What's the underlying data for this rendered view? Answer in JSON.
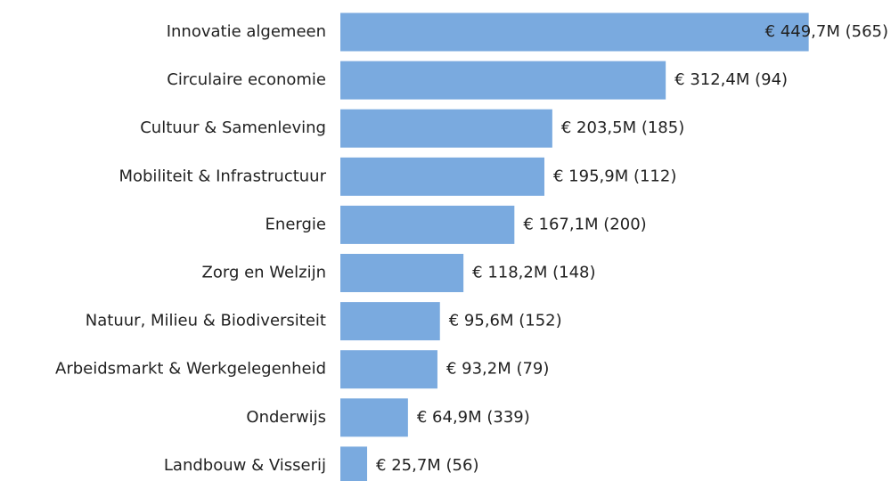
{
  "chart_data": {
    "type": "bar",
    "orientation": "horizontal",
    "categories": [
      "Innovatie algemeen",
      "Circulaire economie",
      "Cultuur & Samenleving",
      "Mobiliteit & Infrastructuur",
      "Energie",
      "Zorg en Welzijn",
      "Natuur, Milieu & Biodiversiteit",
      "Arbeidsmarkt & Werkgelegenheid",
      "Onderwijs",
      "Landbouw & Visserij"
    ],
    "values": [
      449.7,
      312.4,
      203.5,
      195.9,
      167.1,
      118.2,
      95.6,
      93.2,
      64.9,
      25.7
    ],
    "value_labels": [
      "€ 449,7M (565)",
      "€ 312,4M (94)",
      "€ 203,5M (185)",
      "€ 195,9M (112)",
      "€ 167,1M (200)",
      "€ 118,2M (148)",
      "€ 95,6M (152)",
      "€ 93,2M (79)",
      "€ 64,9M (339)",
      "€ 25,7M (56)"
    ],
    "color": "#7aaadf",
    "xlim": [
      0,
      450
    ]
  }
}
